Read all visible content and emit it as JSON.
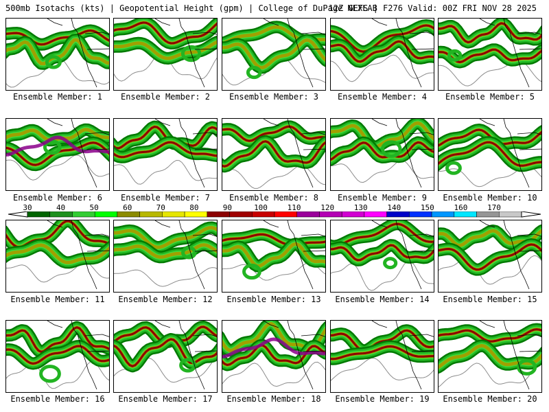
{
  "header": {
    "left_text": "500mb Isotachs (kts) | Geopotential Height (gpm) | College of DuPage NEXLAB",
    "right_text": "12Z GEFS | F276 Valid: 00Z FRI NOV 28 2025"
  },
  "colorbar": {
    "tick_labels": [
      "30",
      "40",
      "50",
      "60",
      "70",
      "80",
      "90",
      "100",
      "110",
      "120",
      "130",
      "140",
      "150",
      "160",
      "170"
    ],
    "colors": [
      "#006400",
      "#1e901e",
      "#32cd32",
      "#00ff00",
      "#8b8b00",
      "#b8b800",
      "#e6e600",
      "#ffff00",
      "#8b0000",
      "#a00000",
      "#c80000",
      "#ff0000",
      "#9b009b",
      "#b400b4",
      "#d200d2",
      "#ff00ff",
      "#0000c8",
      "#0032ff",
      "#0096ff",
      "#00e6ff",
      "#969696",
      "#c8c8c8"
    ],
    "isotach_colors": {
      "dark_green": "#007a00",
      "green": "#22b422",
      "light_green": "#3cdc3c",
      "olive": "#a0a000",
      "yellow": "#e6e600",
      "dark_red": "#8b0000",
      "purple": "#8b008b"
    }
  },
  "members": [
    {
      "label": "Ensemble Member: 1"
    },
    {
      "label": "Ensemble Member: 2"
    },
    {
      "label": "Ensemble Member: 3"
    },
    {
      "label": "Ensemble Member: 4"
    },
    {
      "label": "Ensemble Member: 5"
    },
    {
      "label": "Ensemble Member: 6"
    },
    {
      "label": "Ensemble Member: 7"
    },
    {
      "label": "Ensemble Member: 8"
    },
    {
      "label": "Ensemble Member: 9"
    },
    {
      "label": "Ensemble Member: 10"
    },
    {
      "label": "Ensemble Member: 11"
    },
    {
      "label": "Ensemble Member: 12"
    },
    {
      "label": "Ensemble Member: 13"
    },
    {
      "label": "Ensemble Member: 14"
    },
    {
      "label": "Ensemble Member: 15"
    },
    {
      "label": "Ensemble Member: 16"
    },
    {
      "label": "Ensemble Member: 17"
    },
    {
      "label": "Ensemble Member: 18"
    },
    {
      "label": "Ensemble Member: 19"
    },
    {
      "label": "Ensemble Member: 20"
    }
  ]
}
